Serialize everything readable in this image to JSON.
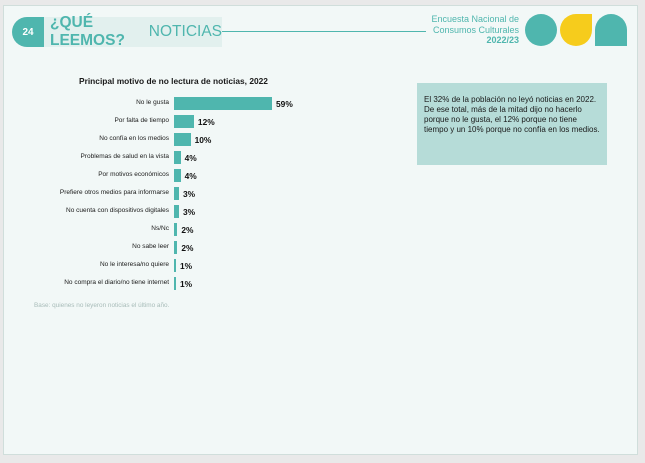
{
  "header": {
    "page_number": "24",
    "title_strong": "¿QUÉ LEEMOS?",
    "title_light": "NOTICIAS",
    "survey_line1": "Encuesta Nacional de",
    "survey_line2": "Consumos Culturales",
    "survey_year": "2022/23"
  },
  "colors": {
    "accent": "#4fb6ae",
    "yellow": "#f6cc1c",
    "callout_bg": "#b6dcd8"
  },
  "chart_data": {
    "type": "bar",
    "orientation": "horizontal",
    "title": "Principal motivo de no lectura de noticias, 2022",
    "categories": [
      "No le gusta",
      "Por falta de tiempo",
      "No confía en los medios",
      "Problemas de salud en la vista",
      "Por motivos económicos",
      "Prefiere otros medios para informarse",
      "No cuenta con dispositivos digitales",
      "Ns/Nc",
      "No sabe leer",
      "No le interesa/no quiere",
      "No compra el diario/no tiene internet"
    ],
    "values": [
      59,
      12,
      10,
      4,
      4,
      3,
      3,
      2,
      2,
      1,
      1
    ],
    "value_labels": [
      "59%",
      "12%",
      "10%",
      "4%",
      "4%",
      "3%",
      "3%",
      "2%",
      "2%",
      "1%",
      "1%"
    ],
    "unit": "%",
    "grid": false,
    "legend": "none"
  },
  "footnote": "Base: quienes no leyeron noticias el último año.",
  "callout": "El 32% de la población no leyó noticias en 2022. De ese total, más de la mitad dijo no hacerlo porque no le gusta, el 12% porque no tiene tiempo y un 10% porque no confía en los medios."
}
